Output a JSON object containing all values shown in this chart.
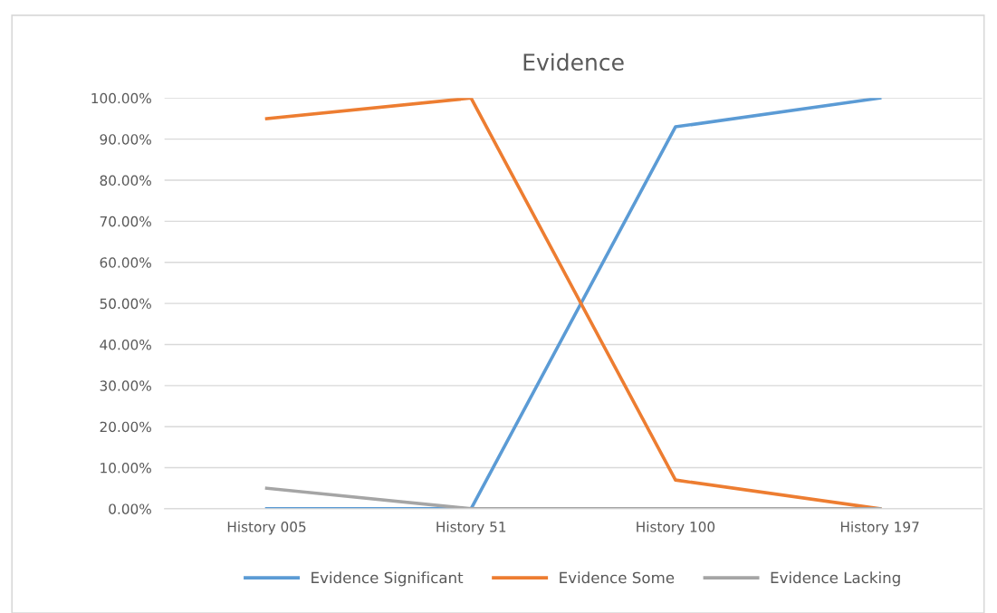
{
  "chart_data": {
    "type": "line",
    "title": "Evidence",
    "categories": [
      "History 005",
      "History 51",
      "History 100",
      "History 197"
    ],
    "series": [
      {
        "name": "Evidence Significant",
        "color": "#5b9bd5",
        "values": [
          0,
          0,
          93,
          100
        ]
      },
      {
        "name": "Evidence Some",
        "color": "#ed7d31",
        "values": [
          95,
          100,
          7,
          0
        ]
      },
      {
        "name": "Evidence Lacking",
        "color": "#a5a5a5",
        "values": [
          5,
          0,
          0,
          0
        ]
      }
    ],
    "ylim": [
      0,
      100
    ],
    "yticks": [
      {
        "value": 0,
        "label": "0.00%"
      },
      {
        "value": 10,
        "label": "10.00%"
      },
      {
        "value": 20,
        "label": "20.00%"
      },
      {
        "value": 30,
        "label": "30.00%"
      },
      {
        "value": 40,
        "label": "40.00%"
      },
      {
        "value": 50,
        "label": "50.00%"
      },
      {
        "value": 60,
        "label": "60.00%"
      },
      {
        "value": 70,
        "label": "70.00%"
      },
      {
        "value": 80,
        "label": "80.00%"
      },
      {
        "value": 90,
        "label": "90.00%"
      },
      {
        "value": 100,
        "label": "100.00%"
      }
    ],
    "grid": "y",
    "legend": "bottom",
    "marker": "none",
    "line_style": "solid"
  }
}
